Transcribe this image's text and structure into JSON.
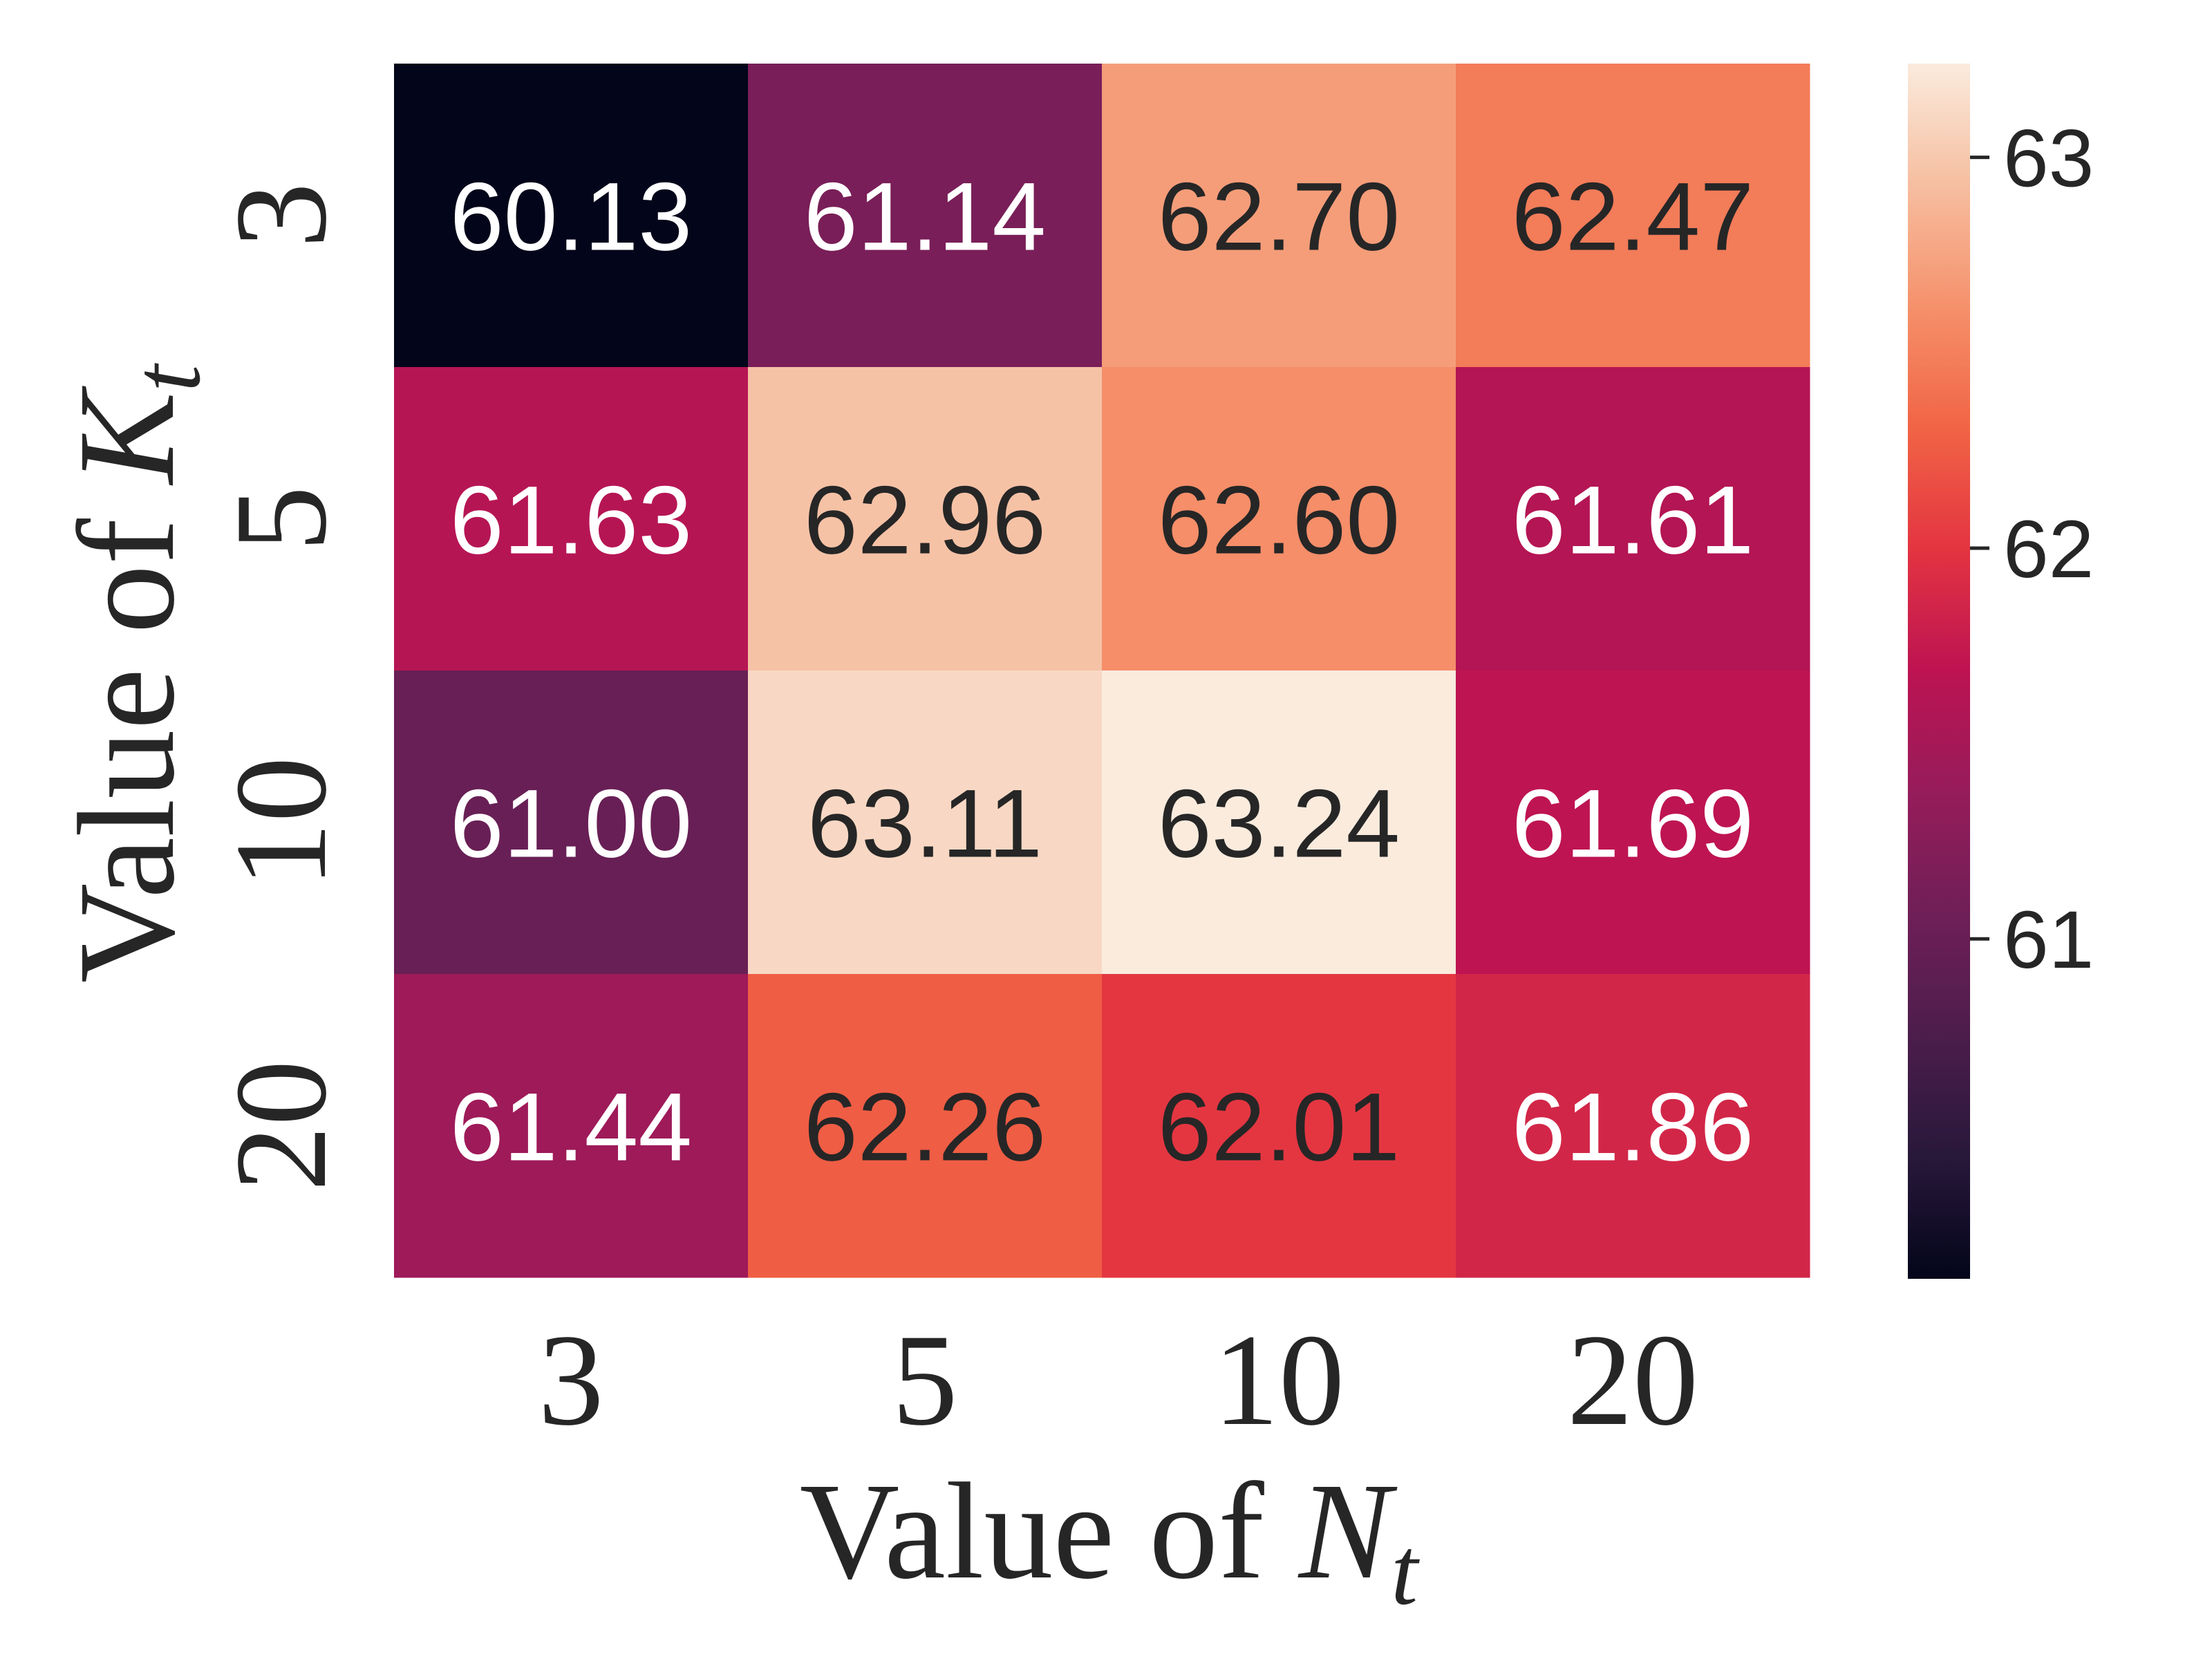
{
  "chart_data": {
    "type": "heatmap",
    "x_categories": [
      "3",
      "5",
      "10",
      "20"
    ],
    "y_categories": [
      "3",
      "5",
      "10",
      "20"
    ],
    "values": [
      [
        60.13,
        61.14,
        62.7,
        62.47
      ],
      [
        61.63,
        62.96,
        62.6,
        61.61
      ],
      [
        61.0,
        63.11,
        63.24,
        61.69
      ],
      [
        61.44,
        62.26,
        62.01,
        61.86
      ]
    ],
    "value_labels": [
      [
        "60.13",
        "61.14",
        "62.70",
        "62.47"
      ],
      [
        "61.63",
        "62.96",
        "62.60",
        "61.61"
      ],
      [
        "61.00",
        "63.11",
        "63.24",
        "61.69"
      ],
      [
        "61.44",
        "62.26",
        "62.01",
        "61.86"
      ]
    ],
    "xlabel_text": "Value of ",
    "xlabel_var": "N",
    "xlabel_sub": "t",
    "ylabel_text": "Value of ",
    "ylabel_var": "K",
    "ylabel_sub": "t",
    "colorbar": {
      "colormap": "rocket",
      "range": [
        60.13,
        63.24
      ],
      "ticks": [
        61,
        62,
        63
      ],
      "tick_labels": [
        "61",
        "62",
        "63"
      ]
    },
    "colors": {
      "light_text": "#ffffff",
      "dark_text": "#262626",
      "axis_text": "#262626"
    }
  }
}
